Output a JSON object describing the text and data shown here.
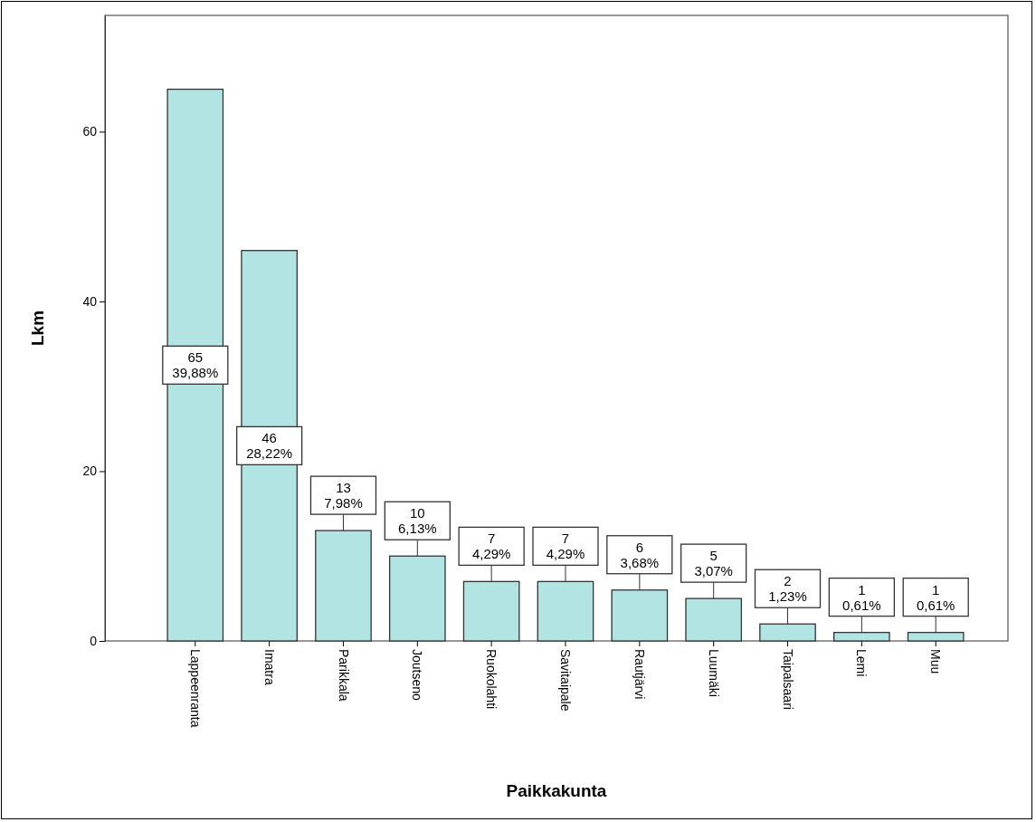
{
  "chart_data": {
    "type": "bar",
    "xlabel": "Paikkakunta",
    "ylabel": "Lkm",
    "categories": [
      "Lappeenranta",
      "Imatra",
      "Parikkala",
      "Joutseno",
      "Ruokolahti",
      "Savitaipale",
      "Rautjärvi",
      "Luumäki",
      "Taipalsaari",
      "Lemi",
      "Muu"
    ],
    "values": [
      65,
      46,
      13,
      10,
      7,
      7,
      6,
      5,
      2,
      1,
      1
    ],
    "value_labels": [
      "65\n39,88%",
      "46\n28,22%",
      "13\n7,98%",
      "10\n6,13%",
      "7\n4,29%",
      "7\n4,29%",
      "6\n3,68%",
      "5\n3,07%",
      "2\n1,23%",
      "1\n0,61%",
      "1\n0,61%"
    ],
    "color": "#b3e4e4",
    "ylim": [
      0,
      73.7
    ],
    "yticks": [
      0,
      20,
      40,
      60
    ],
    "grid": false
  }
}
